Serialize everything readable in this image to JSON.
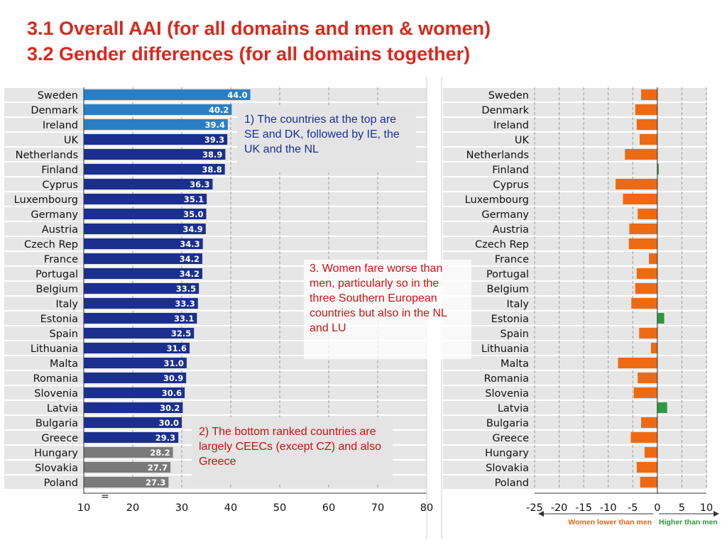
{
  "titles": {
    "line1": "3.1 Overall AAI (for all domains and men & women)",
    "line2": "3.2 Gender differences (for all domains together)"
  },
  "notes": {
    "note1": "1) The countries at the top are SE and DK, followed by IE, the UK and the NL",
    "note2": "2) The bottom ranked countries are largely CEECs (except CZ) and also Greece",
    "note3": "3. Women fare worse than men, particularly so in the three Southern European countries but also in the NL and LU"
  },
  "colors": {
    "light_blue": "#2a7fc4",
    "dark_blue": "#1b2f8f",
    "grey": "#7a7a7a",
    "orange": "#ee6a12",
    "green": "#2b9a3c",
    "row_band": "#e6e6e6",
    "title_red": "#d9291c"
  },
  "chart_data": [
    {
      "type": "bar",
      "orientation": "horizontal",
      "categories": [
        "Sweden",
        "Denmark",
        "Ireland",
        "UK",
        "Netherlands",
        "Finland",
        "Cyprus",
        "Luxembourg",
        "Germany",
        "Austria",
        "Czech Rep",
        "France",
        "Portugal",
        "Belgium",
        "Italy",
        "Estonia",
        "Spain",
        "Lithuania",
        "Malta",
        "Romania",
        "Slovenia",
        "Latvia",
        "Bulgaria",
        "Greece",
        "Hungary",
        "Slovakia",
        "Poland"
      ],
      "values": [
        44.0,
        40.2,
        39.4,
        39.3,
        38.9,
        38.8,
        36.3,
        35.1,
        35.0,
        34.9,
        34.3,
        34.2,
        34.2,
        33.5,
        33.3,
        33.1,
        32.5,
        31.6,
        31.0,
        30.9,
        30.6,
        30.2,
        30.0,
        29.3,
        28.2,
        27.7,
        27.3
      ],
      "value_labels": [
        "44.0",
        "40.2",
        "39.4",
        "39.3",
        "38.9",
        "38.8",
        "36.3",
        "35.1",
        "35.0",
        "34.9",
        "34.3",
        "34.2",
        "34.2",
        "33.5",
        "33.3",
        "33.1",
        "32.5",
        "31.6",
        "31.0",
        "30.9",
        "30.6",
        "30.2",
        "30.0",
        "29.3",
        "28.2",
        "27.7",
        "27.3"
      ],
      "bar_color_groups": [
        "light_blue",
        "light_blue",
        "light_blue",
        "dark_blue",
        "dark_blue",
        "dark_blue",
        "dark_blue",
        "dark_blue",
        "dark_blue",
        "dark_blue",
        "dark_blue",
        "dark_blue",
        "dark_blue",
        "dark_blue",
        "dark_blue",
        "dark_blue",
        "dark_blue",
        "dark_blue",
        "dark_blue",
        "dark_blue",
        "dark_blue",
        "dark_blue",
        "dark_blue",
        "dark_blue",
        "grey",
        "grey",
        "grey"
      ],
      "xlim": [
        10,
        80
      ],
      "xticks": [
        10,
        20,
        30,
        40,
        50,
        60,
        70,
        80
      ],
      "axis_break_mark": "=",
      "grid": "dashed vertical"
    },
    {
      "type": "bar",
      "orientation": "horizontal",
      "categories": [
        "Sweden",
        "Denmark",
        "Ireland",
        "UK",
        "Netherlands",
        "Finland",
        "Cyprus",
        "Luxembourg",
        "Germany",
        "Austria",
        "Czech Rep",
        "France",
        "Portugal",
        "Belgium",
        "Italy",
        "Estonia",
        "Spain",
        "Lithuania",
        "Malta",
        "Romania",
        "Slovenia",
        "Latvia",
        "Bulgaria",
        "Greece",
        "Hungary",
        "Slovakia",
        "Poland"
      ],
      "values": [
        -3.3,
        -4.5,
        -4.2,
        -3.6,
        -6.6,
        0.3,
        -8.5,
        -7.0,
        -4.0,
        -5.7,
        -5.8,
        -1.7,
        -4.2,
        -4.5,
        -5.3,
        1.4,
        -3.7,
        -1.3,
        -8.0,
        -4.0,
        -4.8,
        2.0,
        -3.3,
        -5.4,
        -2.6,
        -4.2,
        -3.5
      ],
      "xlim": [
        -25,
        10
      ],
      "xticks": [
        -25,
        -20,
        -15,
        -10,
        -5,
        0,
        5,
        10
      ],
      "negative_label": "Women lower than men",
      "positive_label": "Higher than men",
      "grid": "dashed vertical"
    }
  ]
}
